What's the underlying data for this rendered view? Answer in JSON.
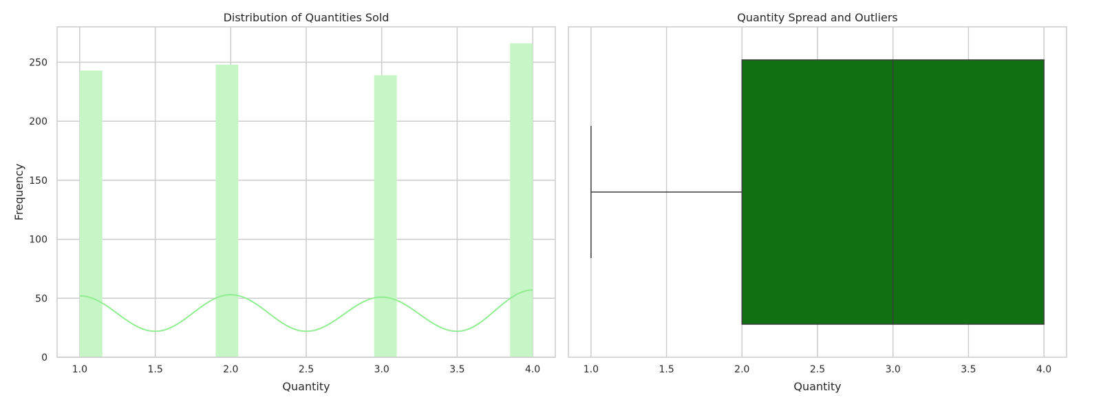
{
  "chart_data": [
    {
      "type": "histogram",
      "title": "Distribution of Quantities Sold",
      "xlabel": "Quantity",
      "ylabel": "Frequency",
      "xlim": [
        0.85,
        4.15
      ],
      "ylim": [
        0,
        280
      ],
      "xticks": [
        "1.0",
        "1.5",
        "2.0",
        "2.5",
        "3.0",
        "3.5",
        "4.0"
      ],
      "yticks": [
        "0",
        "50",
        "100",
        "150",
        "200",
        "250"
      ],
      "grid": true,
      "bar_color": "#c6f6c6",
      "bars": [
        {
          "x0": 1.0,
          "x1": 1.15,
          "value": 243
        },
        {
          "x0": 1.9,
          "x1": 2.05,
          "value": 248
        },
        {
          "x0": 2.95,
          "x1": 3.1,
          "value": 239
        },
        {
          "x0": 3.85,
          "x1": 4.0,
          "value": 266
        }
      ],
      "kde": {
        "color": "#90ee90",
        "points": [
          [
            1.0,
            52
          ],
          [
            1.5,
            22
          ],
          [
            2.0,
            53
          ],
          [
            2.5,
            22
          ],
          [
            3.0,
            51
          ],
          [
            3.5,
            22
          ],
          [
            4.0,
            57
          ]
        ]
      }
    },
    {
      "type": "box",
      "title": "Quantity Spread and Outliers",
      "xlabel": "Quantity",
      "xlim": [
        0.85,
        4.15
      ],
      "xticks": [
        "1.0",
        "1.5",
        "2.0",
        "2.5",
        "3.0",
        "3.5",
        "4.0"
      ],
      "grid": true,
      "box_color": "#117011",
      "stats": {
        "min": 1.0,
        "q1": 2.0,
        "median": 3.0,
        "q3": 4.0,
        "max": 4.0
      }
    }
  ]
}
